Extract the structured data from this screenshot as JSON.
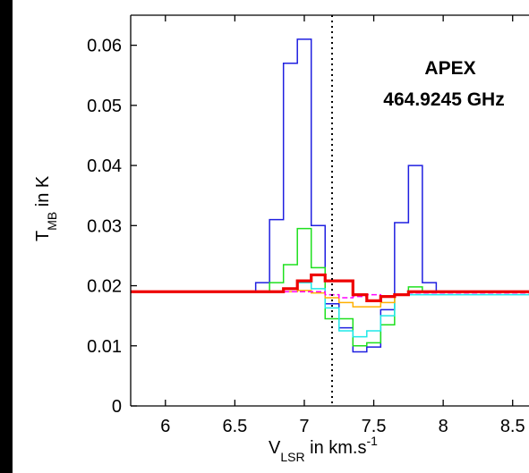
{
  "chart_data": {
    "type": "line",
    "style": "step",
    "title": "",
    "annotations": [
      "APEX",
      "464.9245 GHz"
    ],
    "xlabel": {
      "main": "V",
      "sub": "LSR",
      "rest": " in km.s",
      "sup": "-1"
    },
    "ylabel": {
      "main": "T",
      "sub": "MB",
      "rest": " in K"
    },
    "xlim": [
      5.75,
      8.65
    ],
    "ylim": [
      0,
      0.065
    ],
    "xticks": [
      6,
      6.5,
      7,
      7.5,
      8,
      8.5
    ],
    "xtick_labels": [
      "6",
      "6.5",
      "7",
      "7.5",
      "8",
      "8.5"
    ],
    "yticks": [
      0,
      0.01,
      0.02,
      0.03,
      0.04,
      0.05,
      0.06
    ],
    "ytick_labels": [
      "0",
      "0.01",
      "0.02",
      "0.03",
      "0.04",
      "0.05",
      "0.06"
    ],
    "vline": 7.2,
    "grid": false,
    "series": [
      {
        "color": "#1f1fe0",
        "width": 1.5,
        "x": [
          5.75,
          6.55,
          6.65,
          6.75,
          6.85,
          6.95,
          7.05,
          7.15,
          7.25,
          7.35,
          7.45,
          7.55,
          7.65,
          7.75,
          7.85,
          7.95,
          8.05,
          8.65
        ],
        "y": [
          0.019,
          0.019,
          0.0205,
          0.031,
          0.057,
          0.061,
          0.03,
          0.017,
          0.013,
          0.009,
          0.0098,
          0.016,
          0.0305,
          0.04,
          0.0205,
          0.019,
          0.019,
          0.019
        ]
      },
      {
        "color": "#1ee01e",
        "width": 1.5,
        "x": [
          5.75,
          6.65,
          6.75,
          6.85,
          6.95,
          7.05,
          7.15,
          7.25,
          7.35,
          7.45,
          7.55,
          7.65,
          7.75,
          7.85,
          8.65
        ],
        "y": [
          0.019,
          0.019,
          0.0205,
          0.0235,
          0.0295,
          0.023,
          0.0145,
          0.0145,
          0.01,
          0.0105,
          0.0135,
          0.0185,
          0.0198,
          0.019,
          0.019
        ]
      },
      {
        "color": "#1ee8e8",
        "width": 1.5,
        "x": [
          5.75,
          6.75,
          6.85,
          6.95,
          7.05,
          7.15,
          7.25,
          7.35,
          7.45,
          7.55,
          7.65,
          8.65
        ],
        "y": [
          0.019,
          0.019,
          0.0195,
          0.0205,
          0.0195,
          0.0163,
          0.0125,
          0.0115,
          0.0125,
          0.015,
          0.0185,
          0.019
        ]
      },
      {
        "color": "#ffb000",
        "width": 1.5,
        "x": [
          5.75,
          6.85,
          6.95,
          7.05,
          7.15,
          7.25,
          7.35,
          7.45,
          7.55,
          7.65,
          7.75,
          8.65
        ],
        "y": [
          0.019,
          0.019,
          0.0192,
          0.0188,
          0.018,
          0.0172,
          0.0165,
          0.0165,
          0.0172,
          0.0185,
          0.019,
          0.019
        ]
      },
      {
        "color": "#ff00ff",
        "width": 1.5,
        "dash": "6,3",
        "x": [
          5.75,
          7.05,
          7.15,
          7.25,
          7.35,
          7.45,
          7.55,
          7.65,
          7.75,
          8.65
        ],
        "y": [
          0.019,
          0.019,
          0.0185,
          0.018,
          0.0182,
          0.0185,
          0.0183,
          0.0185,
          0.0188,
          0.019
        ]
      },
      {
        "color": "#ee0000",
        "width": 3.2,
        "x": [
          5.75,
          6.75,
          6.85,
          6.95,
          7.05,
          7.15,
          7.35,
          7.45,
          7.55,
          7.65,
          7.75,
          8.65
        ],
        "y": [
          0.019,
          0.019,
          0.0195,
          0.0208,
          0.0218,
          0.0208,
          0.0185,
          0.0175,
          0.0182,
          0.0185,
          0.019,
          0.019
        ]
      }
    ]
  }
}
